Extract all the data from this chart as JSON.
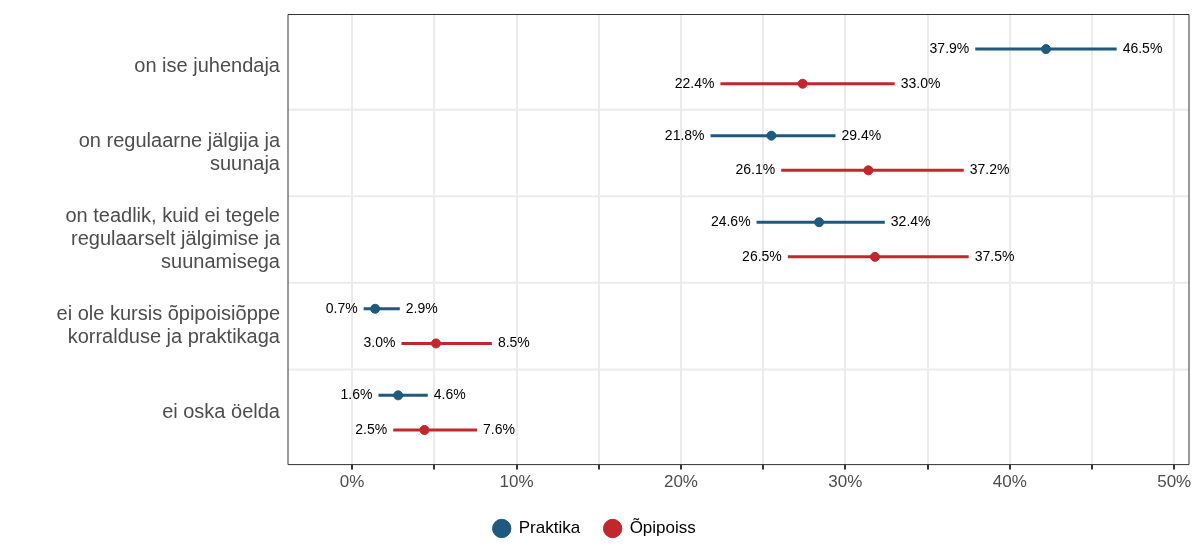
{
  "chart_data": {
    "type": "scatter",
    "orientation": "horizontal",
    "categories": [
      "on ise juhendaja",
      "on regulaarne jälgija ja suunaja",
      "on teadlik, kuid ei tegele regulaarselt jälgimise ja suunamisega",
      "ei ole kursis õpipoisiõppe korralduse ja praktikaga",
      "ei oska öelda"
    ],
    "series": [
      {
        "name": "Praktika",
        "color": "#1f5a7e",
        "values": [
          42.2,
          25.5,
          28.4,
          1.4,
          2.8
        ],
        "errors": [
          [
            37.9,
            46.5
          ],
          [
            21.8,
            29.4
          ],
          [
            24.6,
            32.4
          ],
          [
            0.7,
            2.9
          ],
          [
            1.6,
            4.6
          ]
        ]
      },
      {
        "name": "Õpipoiss",
        "color": "#c1272d",
        "values": [
          27.4,
          31.4,
          31.8,
          5.1,
          4.4
        ],
        "errors": [
          [
            22.4,
            33.0
          ],
          [
            26.1,
            37.2
          ],
          [
            26.5,
            37.5
          ],
          [
            3.0,
            8.5
          ],
          [
            2.5,
            7.6
          ]
        ]
      }
    ],
    "annotations": [
      "37.9%",
      "46.5%",
      "22.4%",
      "33.0%",
      "21.8%",
      "29.4%",
      "26.1%",
      "37.2%",
      "24.6%",
      "32.4%",
      "26.5%",
      "37.5%",
      "0.7%",
      "2.9%",
      "3.0%",
      "8.5%",
      "1.6%",
      "4.6%",
      "2.5%",
      "7.6%"
    ],
    "xlim": [
      -3.9,
      50.9
    ],
    "xticks": [
      {
        "value": 0,
        "label": "0%"
      },
      {
        "value": 5,
        "label": null
      },
      {
        "value": 10,
        "label": "10%"
      },
      {
        "value": 15,
        "label": null
      },
      {
        "value": 20,
        "label": "20%"
      },
      {
        "value": 25,
        "label": null
      },
      {
        "value": 30,
        "label": "30%"
      },
      {
        "value": 35,
        "label": null
      },
      {
        "value": 40,
        "label": "40%"
      },
      {
        "value": 45,
        "label": null
      },
      {
        "value": 50,
        "label": "50%"
      }
    ],
    "grid": true,
    "legend": "bottom",
    "marker": "circle"
  }
}
